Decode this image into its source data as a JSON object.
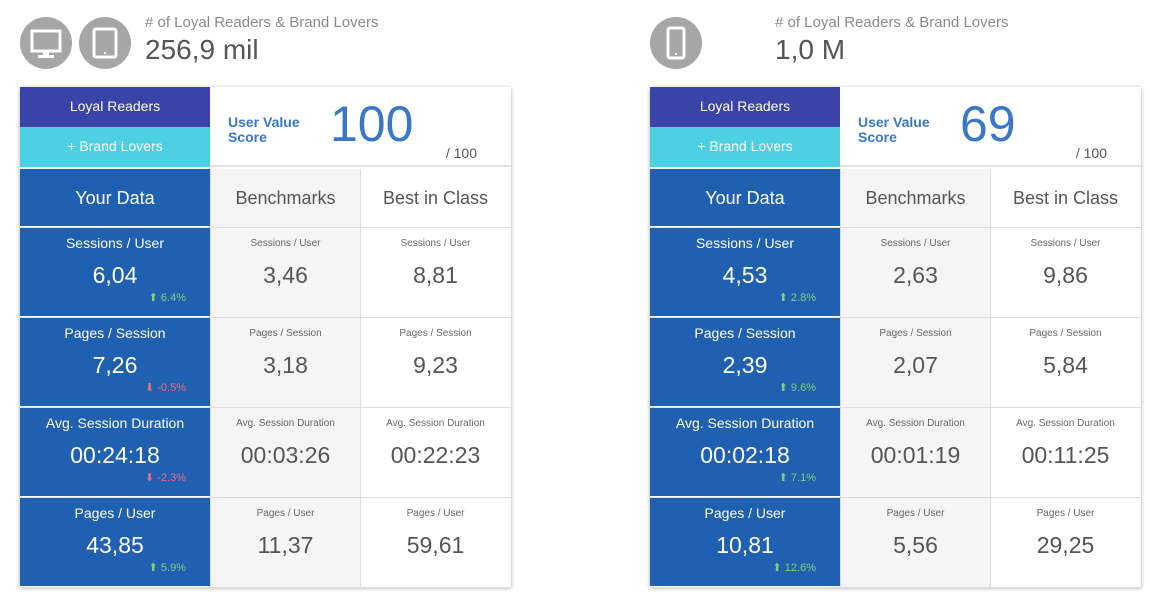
{
  "dashboards": [
    {
      "icons": [
        "desktop-icon",
        "tablet-icon"
      ],
      "header_label": "# of Loyal Readers & Brand Lovers",
      "header_value": "256,9 mil",
      "segment_primary": "Loyal Readers",
      "segment_secondary": "+ Brand Lovers",
      "score_label": "User Value Score",
      "score": "100",
      "score_max": "/ 100",
      "columns": [
        "Your Data",
        "Benchmarks",
        "Best in Class"
      ],
      "rows": [
        {
          "metric": "Sessions / User",
          "yours": "6,04",
          "delta": "6.4%",
          "trend": "up",
          "benchmark": "3,46",
          "best": "8,81"
        },
        {
          "metric": "Pages / Session",
          "yours": "7,26",
          "delta": "-0.5%",
          "trend": "down",
          "benchmark": "3,18",
          "best": "9,23"
        },
        {
          "metric": "Avg. Session Duration",
          "yours": "00:24:18",
          "delta": "-2.3%",
          "trend": "down",
          "benchmark": "00:03:26",
          "best": "00:22:23"
        },
        {
          "metric": "Pages / User",
          "yours": "43,85",
          "delta": "5.9%",
          "trend": "up",
          "benchmark": "11,37",
          "best": "59,61"
        }
      ]
    },
    {
      "icons": [
        "mobile-icon"
      ],
      "header_label": "# of Loyal Readers & Brand Lovers",
      "header_value": "1,0 M",
      "segment_primary": "Loyal Readers",
      "segment_secondary": "+ Brand Lovers",
      "score_label": "User Value Score",
      "score": "69",
      "score_max": "/ 100",
      "columns": [
        "Your Data",
        "Benchmarks",
        "Best in Class"
      ],
      "rows": [
        {
          "metric": "Sessions / User",
          "yours": "4,53",
          "delta": "2.8%",
          "trend": "up",
          "benchmark": "2,63",
          "best": "9,86"
        },
        {
          "metric": "Pages / Session",
          "yours": "2,39",
          "delta": "9.6%",
          "trend": "up",
          "benchmark": "2,07",
          "best": "5,84"
        },
        {
          "metric": "Avg. Session Duration",
          "yours": "00:02:18",
          "delta": "7.1%",
          "trend": "up",
          "benchmark": "00:01:19",
          "best": "00:11:25"
        },
        {
          "metric": "Pages / User",
          "yours": "10,81",
          "delta": "12.6%",
          "trend": "up",
          "benchmark": "5,56",
          "best": "29,25"
        }
      ]
    }
  ],
  "colors": {
    "primary": "#3a44a8",
    "secondary": "#4dd0e1",
    "your_data": "#2060b0",
    "score": "#3a77c8",
    "up": "#7ed07e",
    "down": "#ef6b7e"
  }
}
